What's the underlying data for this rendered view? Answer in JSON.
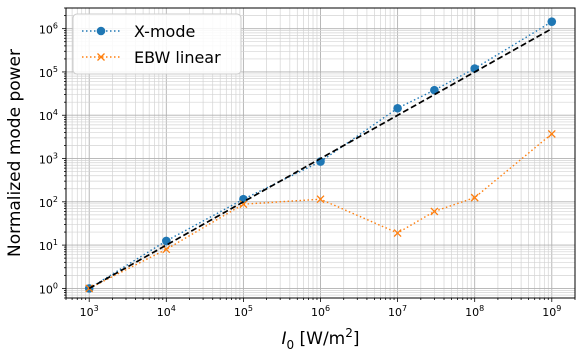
{
  "chart_data": {
    "type": "line",
    "xscale": "log",
    "yscale": "log",
    "xlim": [
      500,
      2000000000
    ],
    "ylim": [
      0.6,
      3000000
    ],
    "xlabel": "I_0 [W/m^2]",
    "ylabel": "Normalized mode power",
    "grid": "major+minor",
    "legend_position": "top-left",
    "x_ticks": [
      {
        "value": 1000,
        "base": "10",
        "exp": "3"
      },
      {
        "value": 10000,
        "base": "10",
        "exp": "4"
      },
      {
        "value": 100000,
        "base": "10",
        "exp": "5"
      },
      {
        "value": 1000000,
        "base": "10",
        "exp": "6"
      },
      {
        "value": 10000000,
        "base": "10",
        "exp": "7"
      },
      {
        "value": 100000000,
        "base": "10",
        "exp": "8"
      },
      {
        "value": 1000000000,
        "base": "10",
        "exp": "9"
      }
    ],
    "y_ticks": [
      {
        "value": 1,
        "base": "10",
        "exp": "0"
      },
      {
        "value": 10,
        "base": "10",
        "exp": "1"
      },
      {
        "value": 100,
        "base": "10",
        "exp": "2"
      },
      {
        "value": 1000,
        "base": "10",
        "exp": "3"
      },
      {
        "value": 10000,
        "base": "10",
        "exp": "4"
      },
      {
        "value": 100000,
        "base": "10",
        "exp": "5"
      },
      {
        "value": 1000000,
        "base": "10",
        "exp": "6"
      }
    ],
    "series": [
      {
        "name": "X-mode",
        "color": "#1f77b4",
        "linestyle": "dotted",
        "marker": "circle",
        "x": [
          1000,
          10000,
          100000,
          1000000,
          10000000,
          30000000,
          100000000,
          1000000000
        ],
        "y": [
          1,
          12.5,
          115,
          850,
          14500,
          38000,
          120000,
          1450000
        ]
      },
      {
        "name": "EBW linear",
        "color": "#ff7f0e",
        "linestyle": "dotted",
        "marker": "x",
        "x": [
          1000,
          10000,
          100000,
          1000000,
          10000000,
          30000000,
          100000000,
          1000000000
        ],
        "y": [
          1,
          8,
          88,
          115,
          19,
          60,
          125,
          3700
        ]
      },
      {
        "color": "#000000",
        "linestyle": "dashed",
        "marker": "none",
        "x": [
          1000,
          1000000000
        ],
        "y": [
          1,
          1000000
        ]
      }
    ]
  }
}
